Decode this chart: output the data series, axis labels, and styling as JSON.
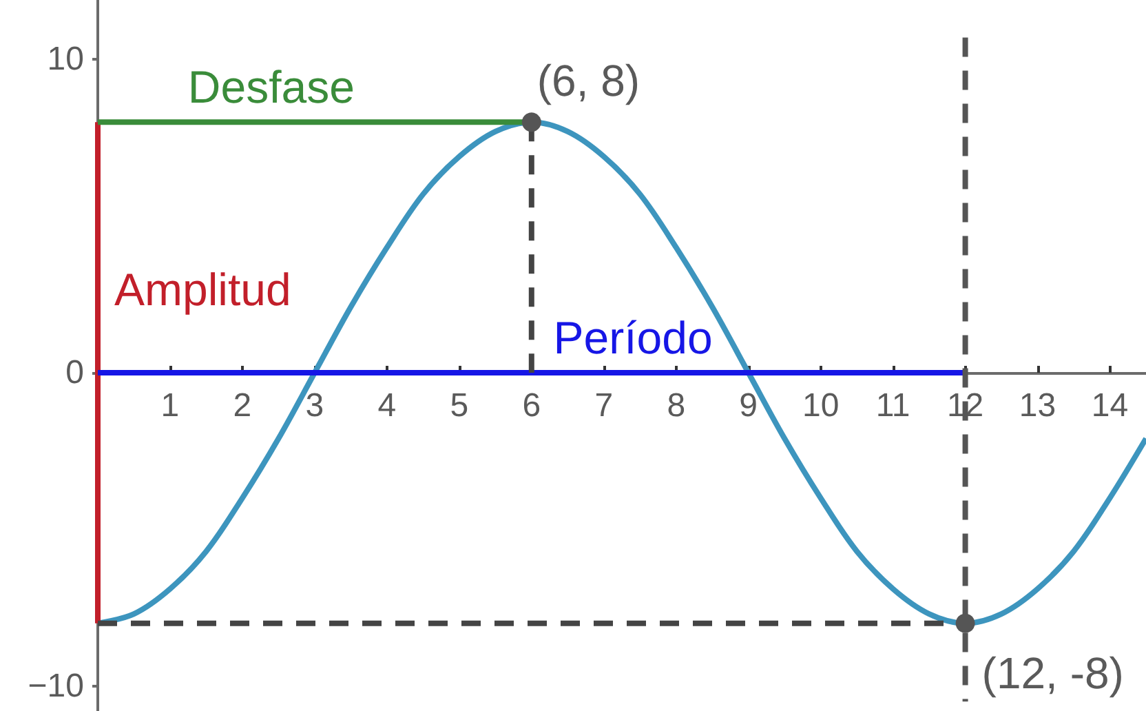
{
  "chart_data": {
    "type": "line",
    "xlim": [
      0,
      14.5
    ],
    "xticks": [
      1,
      2,
      3,
      4,
      5,
      6,
      7,
      8,
      9,
      10,
      11,
      12,
      13,
      14
    ],
    "ylim": [
      -10.8,
      11.9
    ],
    "yticks": [
      {
        "value": -10,
        "label": "−10"
      },
      0,
      10
    ],
    "grid": false,
    "legend": false,
    "marker": "none",
    "series": [
      {
        "color": "#3d95be",
        "x": [
          0,
          0.5,
          1,
          1.5,
          2,
          2.5,
          3,
          3.5,
          4,
          4.5,
          5,
          5.5,
          6,
          6.5,
          7,
          7.5,
          8,
          8.5,
          9,
          9.5,
          10,
          10.5,
          11,
          11.5,
          12,
          12.5,
          13,
          13.5,
          14,
          14.5
        ],
        "values": [
          -8,
          -7.7,
          -6.9,
          -5.7,
          -4,
          -2.1,
          0,
          2.1,
          4,
          5.7,
          6.9,
          7.7,
          8,
          7.7,
          6.9,
          5.7,
          4,
          2.1,
          0,
          -2.1,
          -4,
          -5.7,
          -6.9,
          -7.7,
          -8,
          -7.7,
          -6.9,
          -5.7,
          -4,
          -2.1
        ]
      },
      {
        "name": "Amplitud",
        "color": "#c21f2a",
        "x": [
          0,
          0
        ],
        "values": [
          -8,
          8
        ]
      },
      {
        "name": "Desfase",
        "color": "#3a8c3a",
        "x": [
          0,
          6
        ],
        "values": [
          8,
          8
        ]
      },
      {
        "name": "Período",
        "color": "#1616e6",
        "x": [
          0,
          12
        ],
        "values": [
          0,
          0
        ]
      },
      {
        "color": "#444444",
        "line_style": "dashed",
        "x": [
          6,
          6
        ],
        "values": [
          8,
          0
        ]
      },
      {
        "color": "#444444",
        "line_style": "dashed",
        "x": [
          0,
          12
        ],
        "values": [
          -8,
          -8
        ]
      },
      {
        "color": "#555555",
        "line_style": "dashed",
        "x": [
          12,
          12
        ],
        "values": [
          10.7,
          -10.5
        ]
      },
      {
        "type": "scatter",
        "marker": "circle",
        "color": "#555555",
        "x": [
          6,
          12
        ],
        "values": [
          8,
          -8
        ],
        "value_labels": [
          "(6, 8)",
          "(12, -8)"
        ]
      }
    ]
  }
}
